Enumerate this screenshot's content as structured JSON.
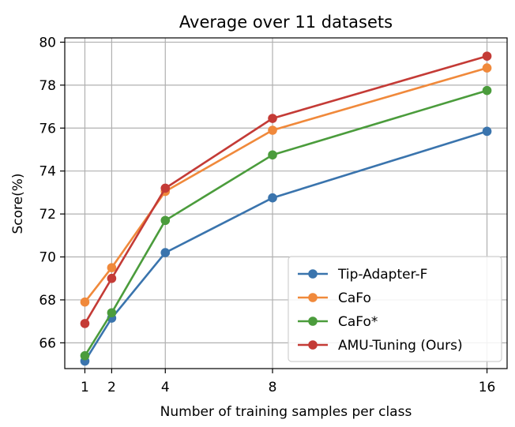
{
  "chart_data": {
    "type": "line",
    "title": "Average over 11 datasets",
    "xlabel": "Number of training samples per class",
    "ylabel": "Score(%)",
    "x": [
      1,
      2,
      4,
      8,
      16
    ],
    "xticks": [
      1,
      2,
      4,
      8,
      16
    ],
    "yticks": [
      66,
      68,
      70,
      72,
      74,
      76,
      78,
      80
    ],
    "xlim": [
      0.25,
      16.75
    ],
    "ylim": [
      64.8,
      80.2
    ],
    "grid": true,
    "legend_position": "lower-right",
    "series": [
      {
        "name": "Tip-Adapter-F",
        "color": "#3a74ad",
        "values": [
          65.15,
          67.15,
          70.2,
          72.75,
          75.85
        ]
      },
      {
        "name": "CaFo",
        "color": "#f0893b",
        "values": [
          67.9,
          69.5,
          73.05,
          75.9,
          78.8
        ]
      },
      {
        "name": "CaFo*",
        "color": "#4b9c3c",
        "values": [
          65.4,
          67.4,
          71.7,
          74.75,
          77.75
        ]
      },
      {
        "name": "AMU-Tuning (Ours)",
        "color": "#c43b36",
        "values": [
          66.9,
          69.0,
          73.2,
          76.45,
          79.35
        ]
      }
    ]
  }
}
